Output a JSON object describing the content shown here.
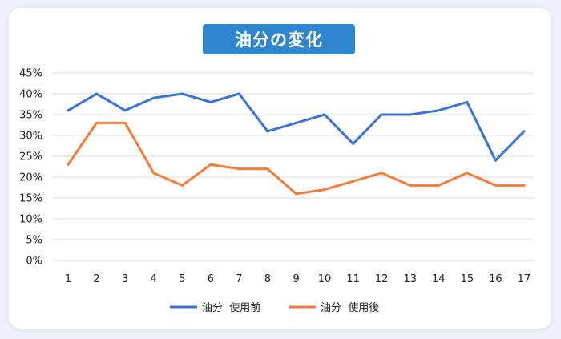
{
  "chart_data": {
    "type": "line",
    "title": "油分の変化",
    "categories": [
      "1",
      "2",
      "3",
      "4",
      "5",
      "6",
      "7",
      "8",
      "9",
      "10",
      "11",
      "12",
      "13",
      "14",
      "15",
      "16",
      "17"
    ],
    "ylim": [
      0,
      45
    ],
    "yticks": [
      "0%",
      "5%",
      "10%",
      "15%",
      "20%",
      "25%",
      "30%",
      "35%",
      "40%",
      "45%"
    ],
    "grid": "horizontal",
    "legend_position": "bottom",
    "series": [
      {
        "name": "油分  使用前",
        "color": "#3a73d6",
        "values": [
          36,
          40,
          36,
          39,
          40,
          38,
          40,
          31,
          33,
          35,
          28,
          35,
          35,
          36,
          38,
          24,
          31
        ]
      },
      {
        "name": "油分  使用後",
        "color": "#f07e3a",
        "values": [
          23,
          33,
          33,
          21,
          18,
          23,
          22,
          22,
          16,
          17,
          19,
          21,
          18,
          18,
          21,
          18,
          18
        ]
      }
    ]
  }
}
